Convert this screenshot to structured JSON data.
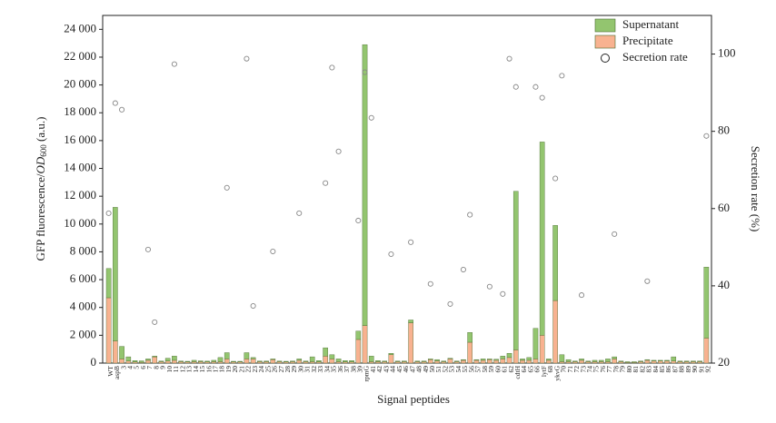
{
  "chart_data": {
    "type": "bar",
    "x_label": "Signal peptides",
    "y_label": {
      "prefix": "GFP fluorescence/",
      "italic": "OD",
      "sub": "600",
      "suffix": " (a.u.)"
    },
    "y2_label": "Secretion rate (%)",
    "categories": [
      "WT",
      "aspB",
      "3",
      "4",
      "5",
      "6",
      "7",
      "8",
      "9",
      "10",
      "11",
      "12",
      "13",
      "14",
      "15",
      "16",
      "17",
      "18",
      "19",
      "20",
      "21",
      "22",
      "23",
      "24",
      "25",
      "26",
      "27",
      "28",
      "29",
      "30",
      "31",
      "32",
      "33",
      "34",
      "35",
      "36",
      "37",
      "38",
      "39",
      "rpmG",
      "41",
      "42",
      "43",
      "44",
      "45",
      "46",
      "47",
      "48",
      "49",
      "50",
      "51",
      "52",
      "53",
      "54",
      "55",
      "56",
      "57",
      "58",
      "59",
      "60",
      "61",
      "62",
      "cdtH",
      "64",
      "65",
      "66",
      "lytF",
      "68",
      "ykvG",
      "70",
      "71",
      "72",
      "73",
      "74",
      "75",
      "76",
      "77",
      "78",
      "79",
      "80",
      "81",
      "82",
      "83",
      "84",
      "85",
      "86",
      "87",
      "88",
      "89",
      "90",
      "91",
      "92"
    ],
    "series": [
      {
        "name": "Supernatant",
        "color": "#93c56f",
        "values": [
          2100,
          9600,
          900,
          300,
          100,
          100,
          100,
          50,
          50,
          200,
          300,
          50,
          50,
          100,
          60,
          60,
          100,
          300,
          450,
          50,
          50,
          450,
          100,
          50,
          50,
          50,
          50,
          50,
          50,
          100,
          50,
          350,
          100,
          600,
          300,
          200,
          100,
          100,
          600,
          20200,
          400,
          80,
          50,
          100,
          50,
          50,
          200,
          50,
          50,
          50,
          100,
          50,
          50,
          50,
          50,
          700,
          50,
          100,
          50,
          80,
          200,
          300,
          11400,
          100,
          200,
          2200,
          13900,
          100,
          5400,
          500,
          150,
          50,
          100,
          50,
          100,
          100,
          200,
          150,
          50,
          50,
          50,
          50,
          50,
          50,
          50,
          50,
          300,
          50,
          50,
          50,
          50,
          5100
        ]
      },
      {
        "name": "Precipitate",
        "color": "#f8b290",
        "values": [
          4700,
          1600,
          300,
          150,
          80,
          60,
          200,
          450,
          100,
          150,
          200,
          100,
          80,
          100,
          100,
          80,
          100,
          100,
          300,
          80,
          80,
          300,
          300,
          100,
          100,
          250,
          100,
          80,
          100,
          200,
          100,
          100,
          80,
          500,
          300,
          100,
          80,
          80,
          1700,
          2700,
          100,
          100,
          100,
          600,
          100,
          100,
          2900,
          100,
          100,
          250,
          150,
          100,
          300,
          100,
          200,
          1500,
          200,
          200,
          250,
          200,
          300,
          400,
          950,
          200,
          200,
          300,
          2000,
          200,
          4500,
          100,
          100,
          100,
          200,
          100,
          100,
          100,
          100,
          300,
          100,
          50,
          50,
          100,
          200,
          150,
          150,
          150,
          150,
          100,
          100,
          100,
          100,
          1800
        ]
      },
      {
        "name": "Secretion rate",
        "type": "scatter",
        "axis": "y2",
        "color": "#888888",
        "values": [
          58.8,
          87.3,
          85.6,
          null,
          null,
          null,
          49.4,
          30.6,
          null,
          null,
          97.4,
          null,
          null,
          null,
          null,
          null,
          null,
          null,
          65.4,
          null,
          null,
          98.8,
          34.8,
          null,
          null,
          48.9,
          null,
          null,
          null,
          58.8,
          null,
          null,
          null,
          66.6,
          96.5,
          74.8,
          null,
          null,
          56.9,
          95.3,
          83.5,
          null,
          null,
          48.2,
          null,
          null,
          51.3,
          null,
          null,
          40.5,
          null,
          null,
          35.3,
          null,
          44.2,
          58.4,
          null,
          null,
          39.8,
          null,
          37.9,
          98.8,
          91.5,
          null,
          null,
          91.5,
          88.7,
          null,
          67.8,
          94.4,
          null,
          null,
          37.6,
          null,
          null,
          null,
          null,
          53.4,
          null,
          null,
          null,
          null,
          41.2,
          null,
          null,
          null,
          null,
          null,
          null,
          null,
          null,
          78.8
        ]
      }
    ],
    "ylim": [
      0,
      25000
    ],
    "yticks": [
      0,
      {
        "value": 2000,
        "label": "2 000"
      },
      {
        "value": 4000,
        "label": "4 000"
      },
      {
        "value": 6000,
        "label": "6 000"
      },
      {
        "value": 8000,
        "label": "8 000"
      },
      {
        "value": 10000,
        "label": "10 000"
      },
      {
        "value": 12000,
        "label": "12 000"
      },
      {
        "value": 14000,
        "label": "14 000"
      },
      {
        "value": 16000,
        "label": "16 000"
      },
      {
        "value": 18000,
        "label": "18 000"
      },
      {
        "value": 20000,
        "label": "20 000"
      },
      {
        "value": 22000,
        "label": "22 000"
      },
      {
        "value": 24000,
        "label": "24 000"
      }
    ],
    "y2lim": [
      20,
      110
    ],
    "y2ticks": [
      20,
      40,
      60,
      80,
      100
    ],
    "legend": "upper right",
    "grid": false
  }
}
